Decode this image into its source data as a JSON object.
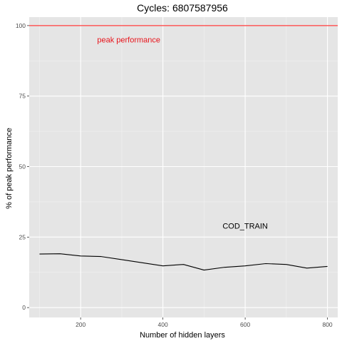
{
  "chart_data": {
    "type": "line",
    "title": "Cycles:  6807587956",
    "xlabel": "Number of hidden layers",
    "ylabel": "% of peak performance",
    "xlim": [
      75,
      825
    ],
    "ylim": [
      -3.5,
      103
    ],
    "x_ticks": [
      200,
      400,
      600,
      800
    ],
    "x_tick_labels": [
      "200",
      "400",
      "600",
      "800"
    ],
    "y_ticks": [
      0,
      25,
      50,
      75,
      100
    ],
    "y_tick_labels": [
      "0",
      "25",
      "50",
      "75",
      "100"
    ],
    "grid": true,
    "legend": "none",
    "series": [
      {
        "x": [
          100,
          150,
          200,
          250,
          300,
          350,
          400,
          450,
          500,
          550,
          600,
          650,
          700,
          750,
          800
        ],
        "values": [
          19.0,
          19.1,
          18.3,
          18.1,
          17.0,
          15.9,
          14.8,
          15.3,
          13.3,
          14.3,
          14.8,
          15.6,
          15.3,
          14.0,
          14.6
        ],
        "color": "#000000"
      }
    ],
    "reference_line": {
      "y": 100,
      "color": "#ff3b3b"
    },
    "annotations": [
      {
        "text": "peak performance",
        "x": 317,
        "y": 94,
        "color": "#e8131a"
      },
      {
        "text": "COD_TRAIN",
        "x": 600,
        "y": 28,
        "color": "#000000"
      }
    ]
  }
}
